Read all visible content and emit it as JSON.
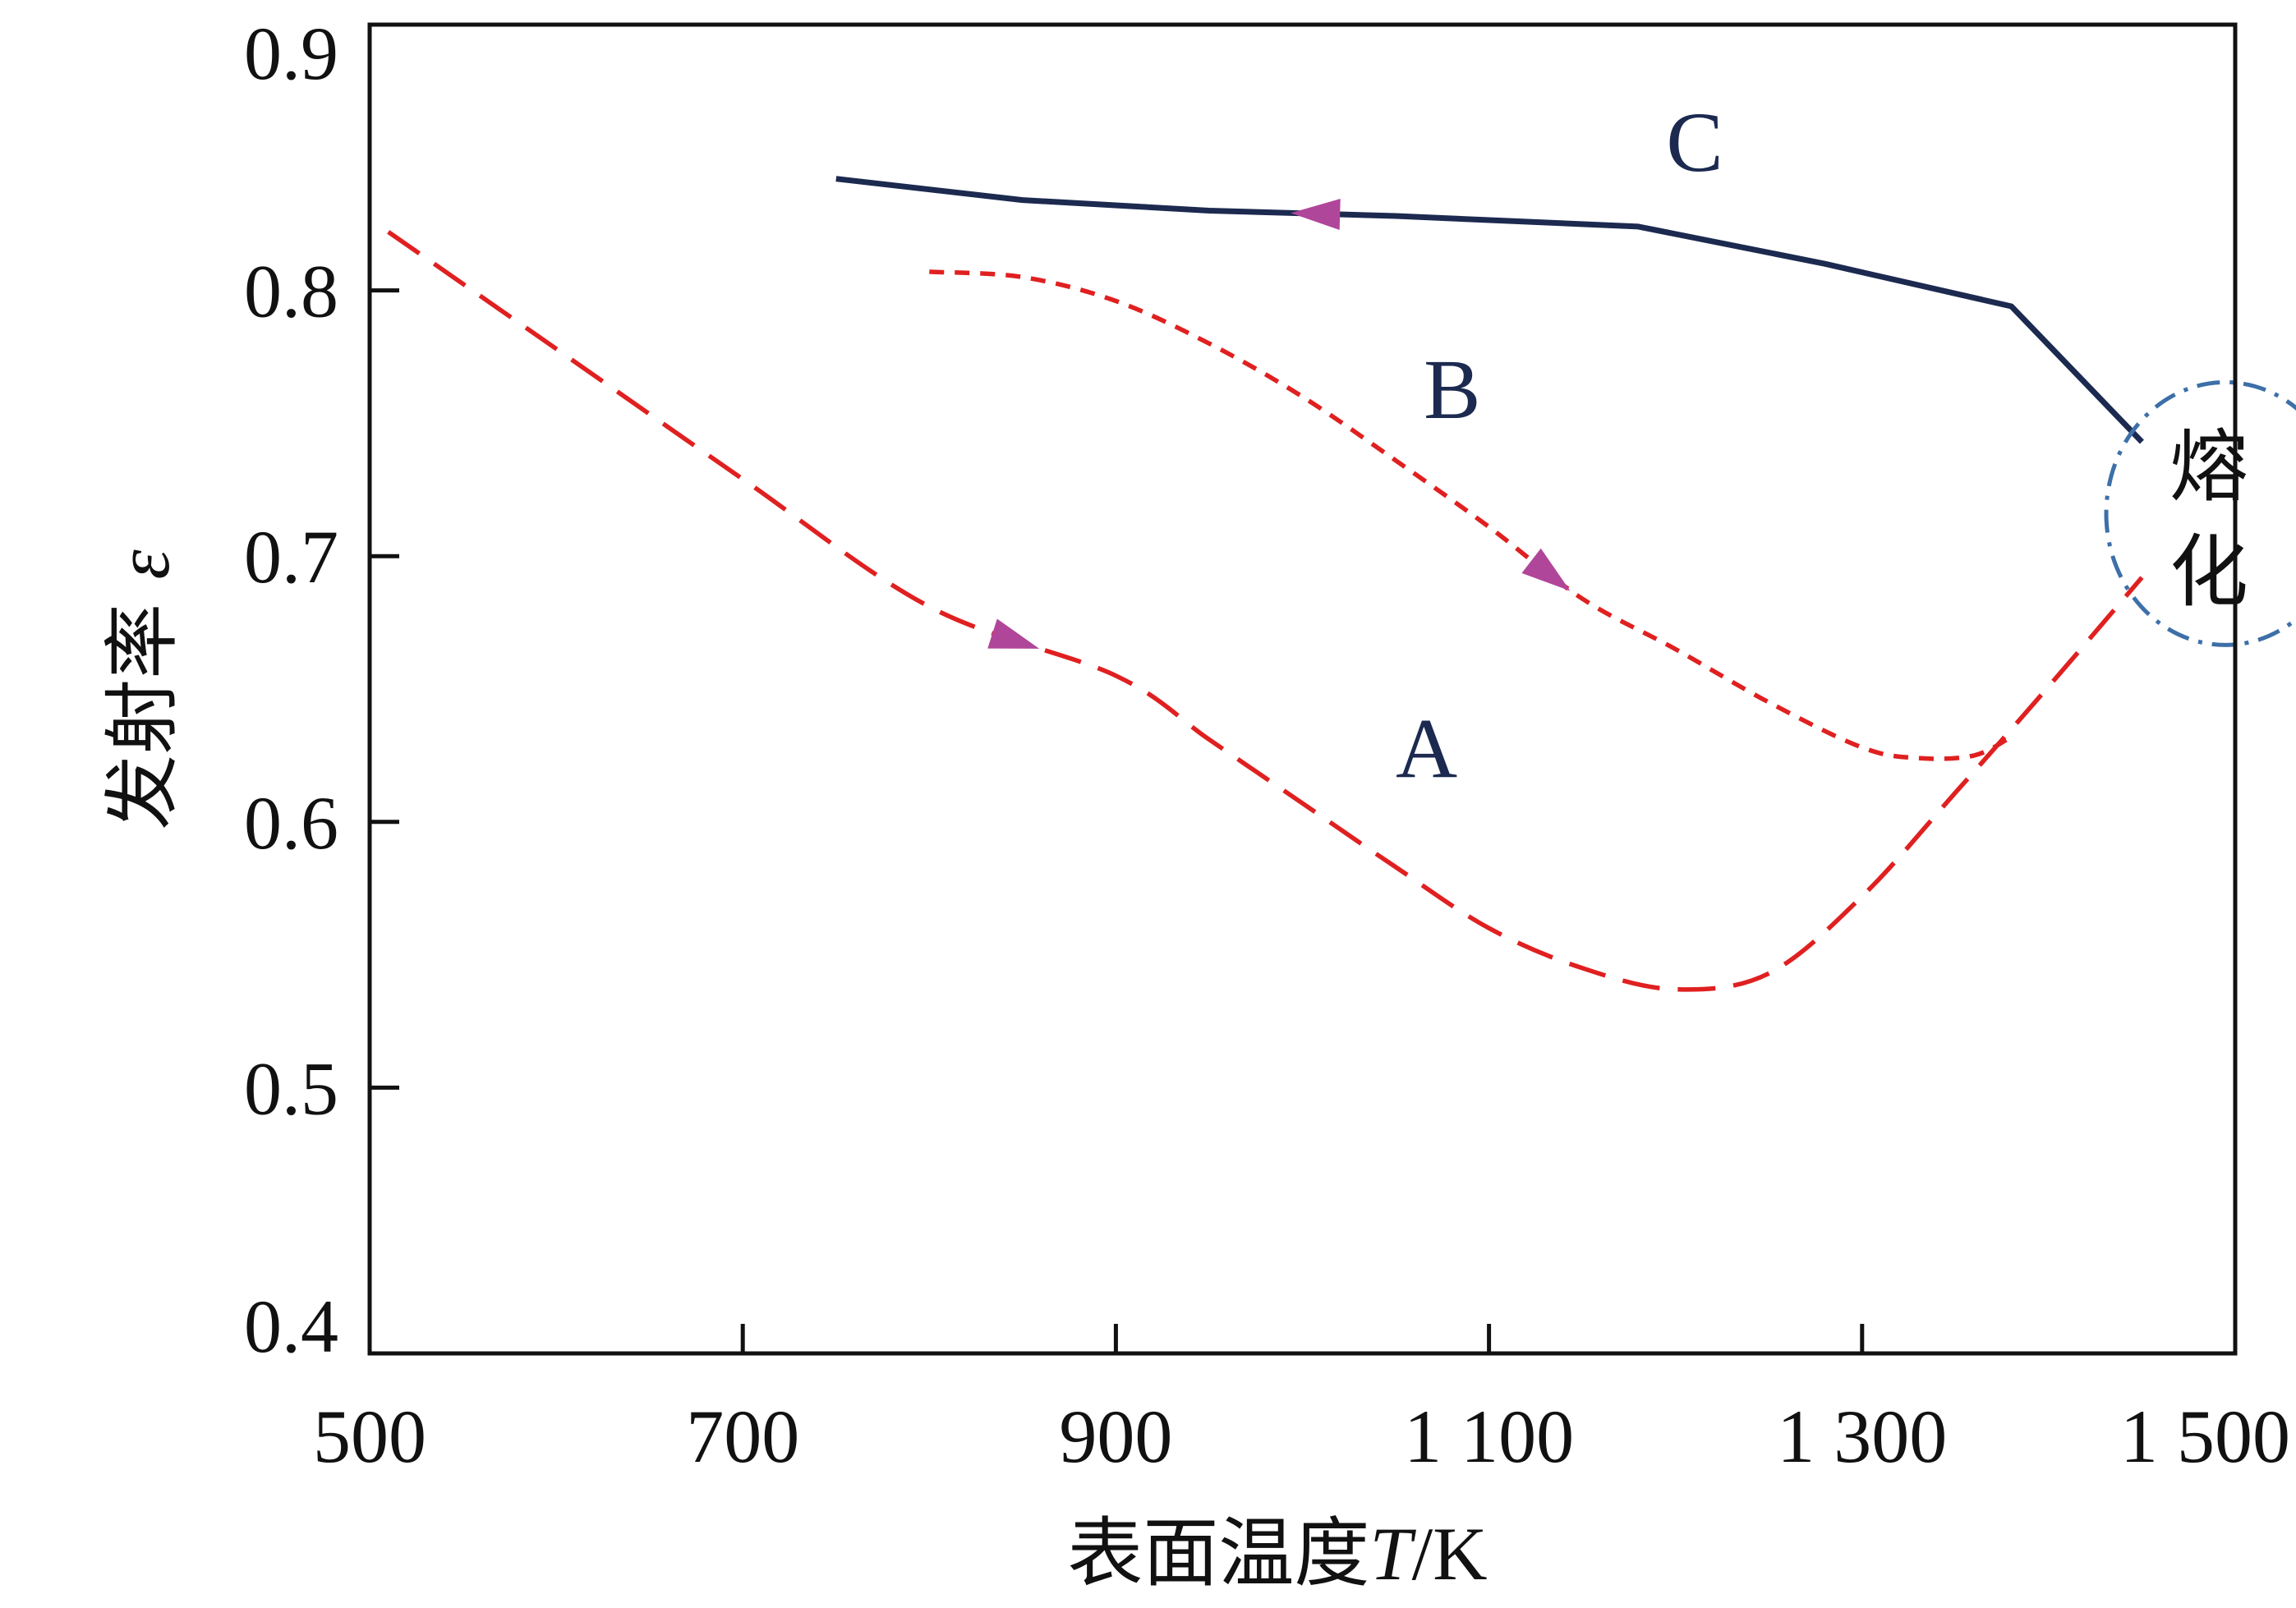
{
  "chart_data": {
    "type": "line",
    "xlabel_parts": [
      "表面温度",
      "T",
      "/K"
    ],
    "ylabel_parts": [
      "发射率 ",
      "ε"
    ],
    "xlim": [
      500,
      1500
    ],
    "ylim": [
      0.4,
      0.9
    ],
    "x_ticks": [
      500,
      700,
      900,
      1100,
      1300,
      1500
    ],
    "x_tick_labels": [
      "500",
      "700",
      "900",
      "1 100",
      "1 300",
      "1 500"
    ],
    "y_ticks": [
      0.4,
      0.5,
      0.6,
      0.7,
      0.8,
      0.9
    ],
    "y_tick_labels": [
      "0.4",
      "0.5",
      "0.6",
      "0.7",
      "0.8",
      "0.9"
    ],
    "grid": false,
    "legend": "none",
    "series": [
      {
        "name": "A",
        "color": "#e02020",
        "style": "long-dash",
        "direction_arrow": "forward",
        "x": [
          510,
          600,
          700,
          800,
          900,
          950,
          1000,
          1050,
          1100,
          1150,
          1200,
          1250,
          1300,
          1350,
          1400,
          1450
        ],
        "y": [
          0.822,
          0.778,
          0.729,
          0.681,
          0.655,
          0.631,
          0.607,
          0.583,
          0.56,
          0.545,
          0.537,
          0.543,
          0.572,
          0.611,
          0.651,
          0.692
        ]
      },
      {
        "name": "B",
        "color": "#e02020",
        "style": "short-dash",
        "direction_arrow": "forward",
        "x": [
          800,
          850,
          900,
          950,
          1000,
          1050,
          1100,
          1150,
          1200,
          1250,
          1300,
          1330,
          1360,
          1380
        ],
        "y": [
          0.807,
          0.805,
          0.796,
          0.78,
          0.76,
          0.736,
          0.711,
          0.684,
          0.665,
          0.645,
          0.628,
          0.624,
          0.625,
          0.632
        ]
      },
      {
        "name": "C",
        "color": "#1c2a50",
        "style": "solid",
        "direction_arrow": "backward",
        "x": [
          750,
          850,
          950,
          1050,
          1180,
          1280,
          1380,
          1450
        ],
        "y": [
          0.842,
          0.834,
          0.83,
          0.828,
          0.824,
          0.81,
          0.794,
          0.743
        ]
      }
    ],
    "series_label_positions": [
      {
        "name": "A",
        "x": 1050,
        "y": 0.617
      },
      {
        "name": "B",
        "x": 1065,
        "y": 0.752
      },
      {
        "name": "C",
        "x": 1195,
        "y": 0.845
      }
    ],
    "annotations": [
      {
        "text": [
          "熔",
          "化"
        ],
        "shape": "dash-dot-circle",
        "color": "#3d6fa8",
        "x": 1500,
        "y": 0.716
      }
    ]
  }
}
